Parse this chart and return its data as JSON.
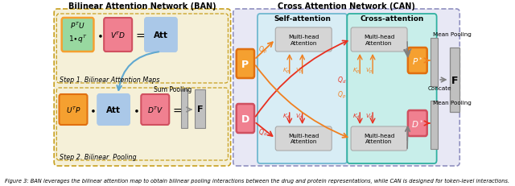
{
  "figure_width": 6.4,
  "figure_height": 2.32,
  "dpi": 100,
  "caption": "Figure 3: BAN leverages the bilinear attention map to obtain bilinear pooling interactions between the drug and protein representations, while CAN is designed for token-level interactions.",
  "ban_title": "Bilinear Attention Network (BAN)",
  "can_title": "Cross Attention Network (CAN)",
  "self_attn_title": "Self-attention",
  "cross_attn_title": "Cross-attention",
  "bg_ban": "#f5f0d8",
  "bg_can": "#e8e8f5",
  "bg_self": "#d8edf5",
  "bg_cross": "#c8eeea",
  "border_ban": "#c8a020",
  "border_can": "#9090c0",
  "border_self": "#70b8d0",
  "border_cross": "#30b0a0",
  "orange": "#f5a030",
  "orange_border": "#e07010",
  "pink": "#f08090",
  "pink_border": "#d05060",
  "blue_light": "#aac8e8",
  "green_light": "#98d8a0",
  "gray_box": "#c0c0c0",
  "gray_dark": "#888888",
  "red_arrow": "#e83020",
  "orange_arrow": "#f08020",
  "blue_arrow": "#60a8d0",
  "gray_arrow": "#808080"
}
